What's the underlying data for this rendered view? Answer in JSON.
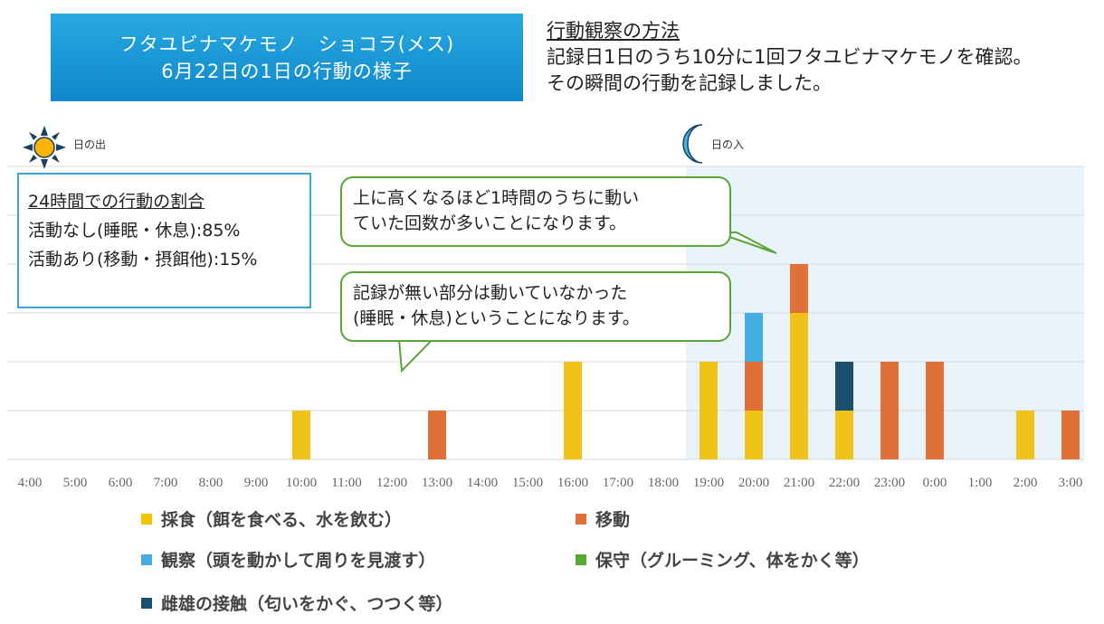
{
  "header": {
    "title_line1": "フタユビナマケモノ　ショコラ(メス)",
    "title_line2": "6月22日の1日の行動の様子"
  },
  "method": {
    "heading": "行動観察の方法",
    "line1": "記録日1日のうち10分に1回フタユビナマケモノを確認。",
    "line2": "その瞬間の行動を記録しました。"
  },
  "sunrise_label": "日の出",
  "sunset_label": "日の入",
  "ratio": {
    "heading": "24時間での行動の割合",
    "line1": "活動なし(睡眠・休息):85%",
    "line2": "活動あり(移動・摂餌他):15%"
  },
  "bubble1": {
    "line1": "上に高くなるほど1時間のうちに動い",
    "line2": "ていた回数が多いことになります。"
  },
  "bubble2": {
    "line1": "記録が無い部分は動いていなかった",
    "line2": "(睡眠・休息)ということになります。"
  },
  "legend": [
    {
      "label": "採食（餌を食べる、水を飲む）",
      "color": "#f5c400"
    },
    {
      "label": "移動",
      "color": "#e07038"
    },
    {
      "label": "観察（頭を動かして周りを見渡す）",
      "color": "#44aee0"
    },
    {
      "label": "保守（グルーミング、体をかく等）",
      "color": "#55a832"
    },
    {
      "label": "雌雄の接触（匂いをかぐ、つつく等）",
      "color": "#1a4f6e"
    }
  ],
  "chart_data": {
    "type": "bar",
    "stacked": true,
    "categories": [
      "4:00",
      "5:00",
      "6:00",
      "7:00",
      "8:00",
      "9:00",
      "10:00",
      "11:00",
      "12:00",
      "13:00",
      "14:00",
      "15:00",
      "16:00",
      "17:00",
      "18:00",
      "19:00",
      "20:00",
      "21:00",
      "22:00",
      "23:00",
      "0:00",
      "1:00",
      "2:00",
      "3:00"
    ],
    "series": [
      {
        "name": "採食（餌を食べる、水を飲む）",
        "color": "#f0c319",
        "values": [
          0,
          0,
          0,
          0,
          0,
          0,
          1,
          0,
          0,
          0,
          0,
          0,
          2,
          0,
          0,
          2,
          1,
          3,
          1,
          0,
          0,
          0,
          1,
          0
        ]
      },
      {
        "name": "移動",
        "color": "#e07038",
        "values": [
          0,
          0,
          0,
          0,
          0,
          0,
          0,
          0,
          0,
          1,
          0,
          0,
          0,
          0,
          0,
          0,
          1,
          1,
          0,
          2,
          2,
          0,
          0,
          1
        ]
      },
      {
        "name": "観察（頭を動かして周りを見渡す）",
        "color": "#44aee0",
        "values": [
          0,
          0,
          0,
          0,
          0,
          0,
          0,
          0,
          0,
          0,
          0,
          0,
          0,
          0,
          0,
          0,
          1,
          0,
          0,
          0,
          0,
          0,
          0,
          0
        ]
      },
      {
        "name": "保守（グルーミング、体をかく等）",
        "color": "#55a832",
        "values": [
          0,
          0,
          0,
          0,
          0,
          0,
          0,
          0,
          0,
          0,
          0,
          0,
          0,
          0,
          0,
          0,
          0,
          0,
          0,
          0,
          0,
          0,
          0,
          0
        ]
      },
      {
        "name": "雌雄の接触（匂いをかぐ、つつく等）",
        "color": "#1a4f6e",
        "values": [
          0,
          0,
          0,
          0,
          0,
          0,
          0,
          0,
          0,
          0,
          0,
          0,
          0,
          0,
          0,
          0,
          0,
          0,
          1,
          0,
          0,
          0,
          0,
          0
        ]
      }
    ],
    "ylim": [
      0,
      6
    ],
    "grid": true,
    "night_shade_from": "19:00",
    "night_shade_color": "#e8f4fa"
  }
}
